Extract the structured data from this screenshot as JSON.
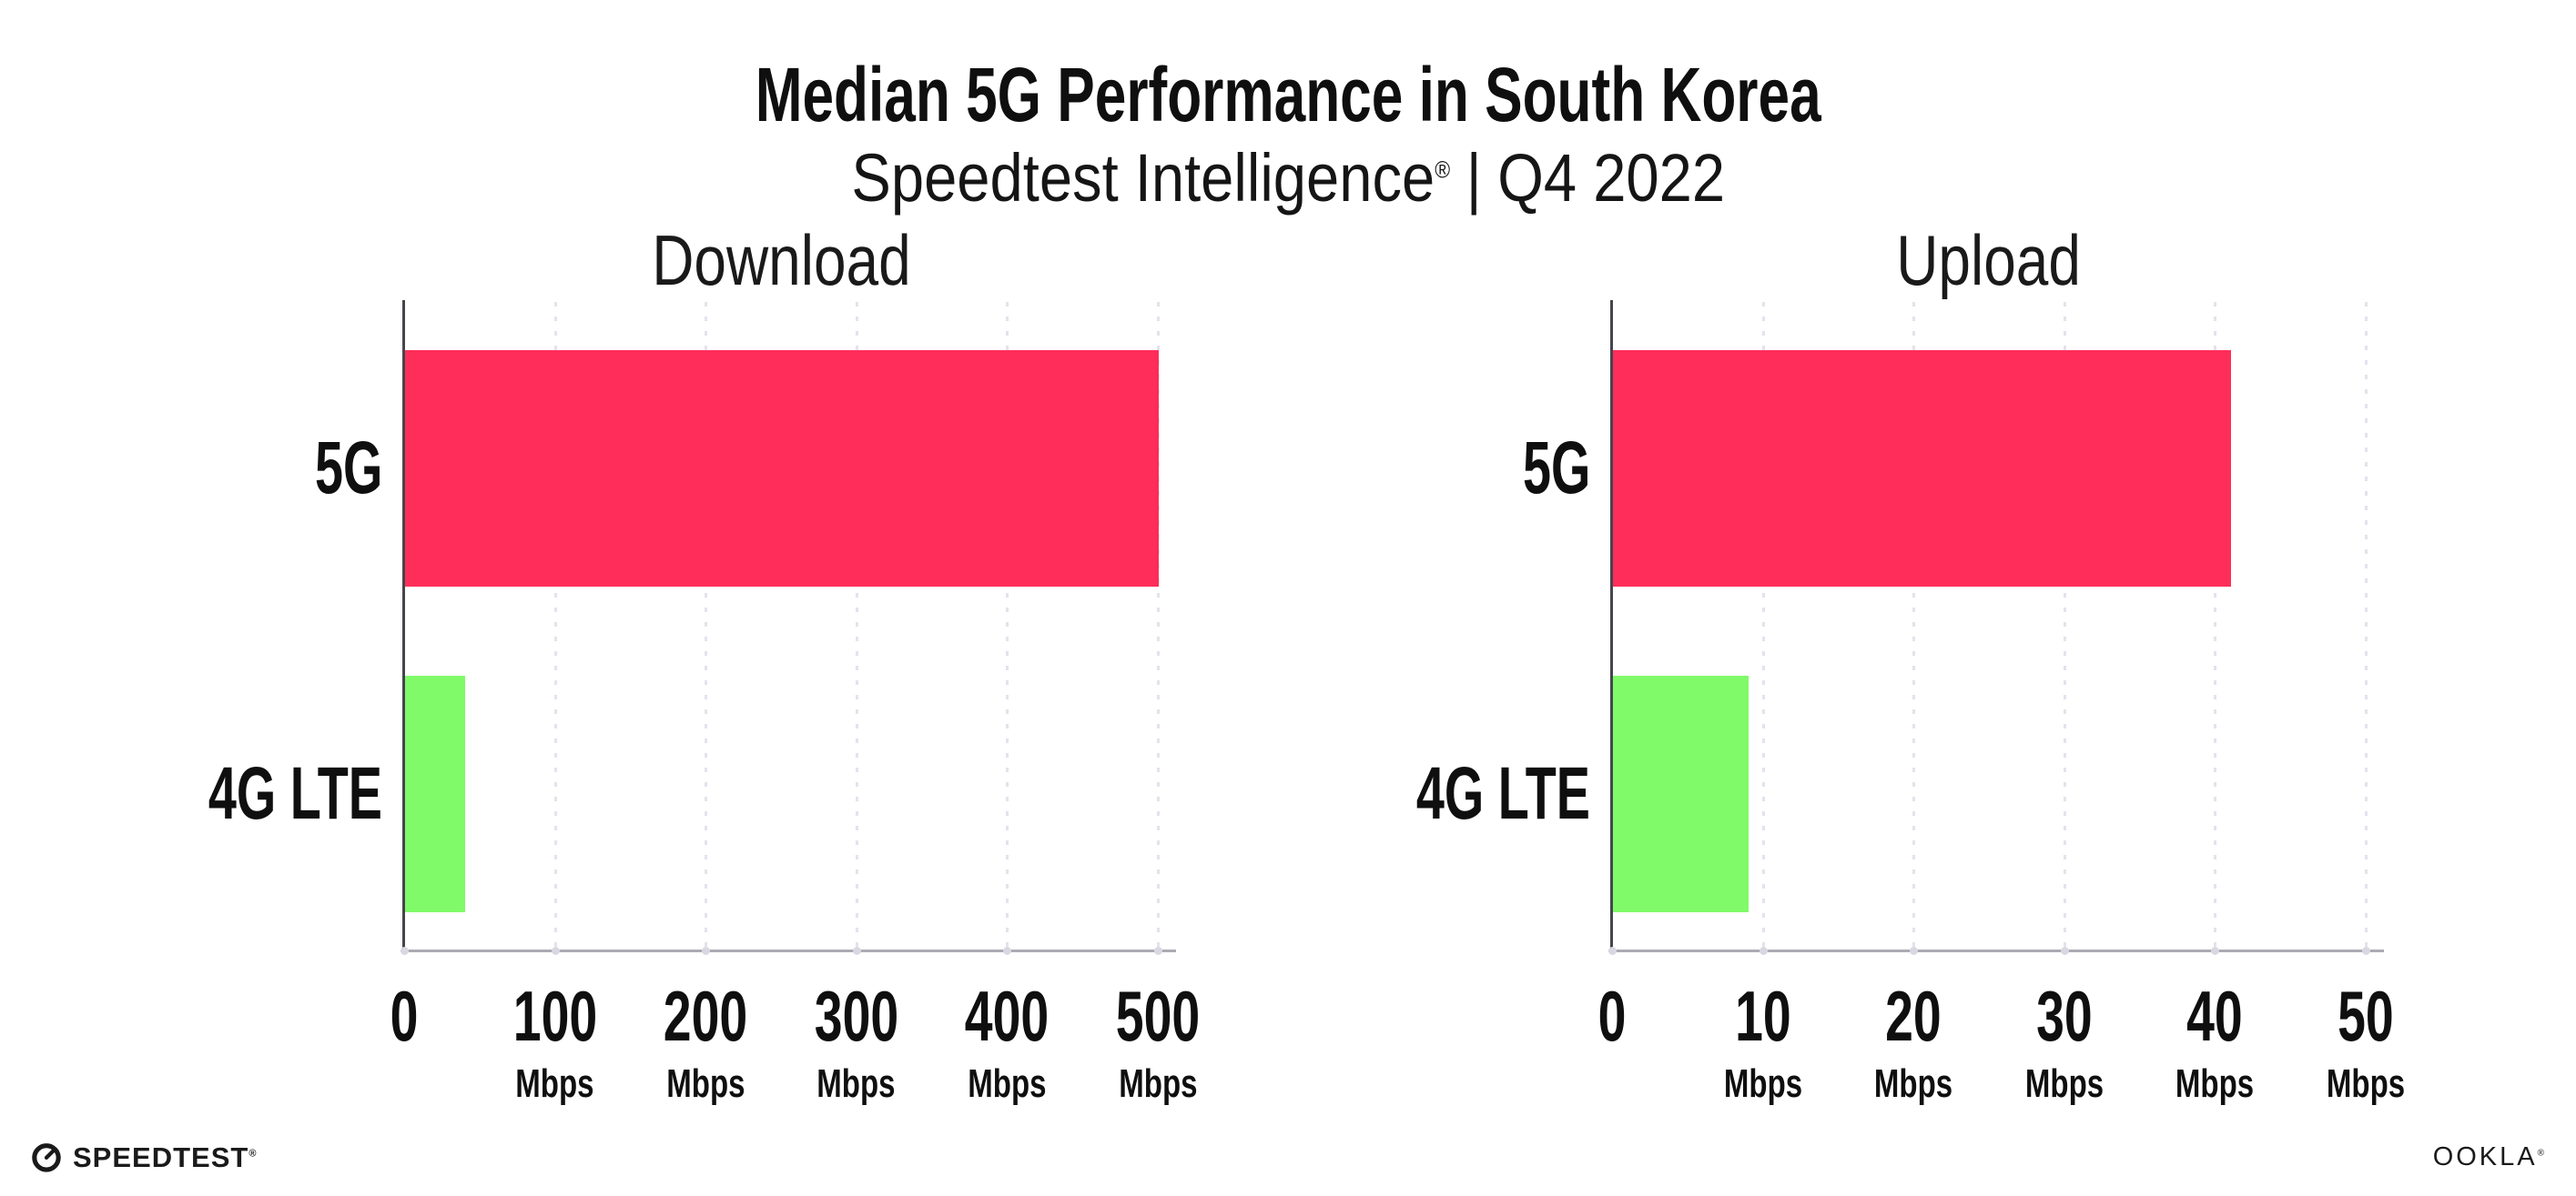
{
  "header": {
    "title": "Median 5G Performance in South Korea",
    "subtitle_brand": "Speedtest Intelligence",
    "subtitle_registered": "®",
    "subtitle_separator": "|",
    "subtitle_period": "Q4 2022"
  },
  "footer": {
    "speedtest_label": "SPEEDTEST",
    "speedtest_registered": "®",
    "ookla_label": "OOKLA",
    "ookla_registered": "®"
  },
  "colors": {
    "bar_5g": "#ff2d5a",
    "bar_4g_lte": "#80fa69",
    "y_axis_line": "#45454d",
    "x_axis_line": "#abaab4",
    "gridline": "#e3e2ed",
    "text": "#0f0f0f"
  },
  "chart_data": [
    {
      "type": "bar",
      "orientation": "horizontal",
      "title": "Download",
      "categories": [
        "5G",
        "4G LTE"
      ],
      "values": [
        500,
        40
      ],
      "unit": "Mbps",
      "xlim": [
        0,
        500
      ],
      "xticks": [
        0,
        100,
        200,
        300,
        400,
        500
      ],
      "xtick_unit_label": "Mbps",
      "bar_colors": [
        "#ff2d5a",
        "#80fa69"
      ],
      "grid": "vertical-dotted",
      "legend": false
    },
    {
      "type": "bar",
      "orientation": "horizontal",
      "title": "Upload",
      "categories": [
        "5G",
        "4G LTE"
      ],
      "values": [
        41,
        9
      ],
      "unit": "Mbps",
      "xlim": [
        0,
        50
      ],
      "xticks": [
        0,
        10,
        20,
        30,
        40,
        50
      ],
      "xtick_unit_label": "Mbps",
      "bar_colors": [
        "#ff2d5a",
        "#80fa69"
      ],
      "grid": "vertical-dotted",
      "legend": false
    }
  ]
}
